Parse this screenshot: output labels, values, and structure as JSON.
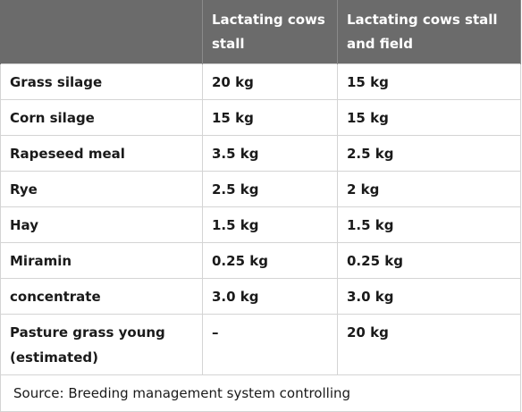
{
  "table": {
    "headers": [
      "",
      "Lactating cows stall",
      "Lactating cows stall and field"
    ],
    "rows": [
      {
        "item": "Grass silage",
        "stall": "20 kg",
        "stall_field": "15 kg"
      },
      {
        "item": "Corn silage",
        "stall": "15 kg",
        "stall_field": "15 kg"
      },
      {
        "item": "Rapeseed meal",
        "stall": "3.5 kg",
        "stall_field": "2.5 kg"
      },
      {
        "item": "Rye",
        "stall": "2.5 kg",
        "stall_field": "2 kg"
      },
      {
        "item": "Hay",
        "stall": "1.5 kg",
        "stall_field": "1.5 kg"
      },
      {
        "item": "Miramin",
        "stall": "0.25 kg",
        "stall_field": "0.25 kg"
      },
      {
        "item": "concentrate",
        "stall": "3.0 kg",
        "stall_field": "3.0 kg"
      },
      {
        "item": "Pasture grass young (estimated)",
        "stall": "–",
        "stall_field": "20 kg"
      }
    ],
    "source": "Source: Breeding management system controlling"
  },
  "colors": {
    "header_bg": "#6b6b6b",
    "header_text": "#ffffff",
    "grid_line": "#d4d4d4"
  }
}
